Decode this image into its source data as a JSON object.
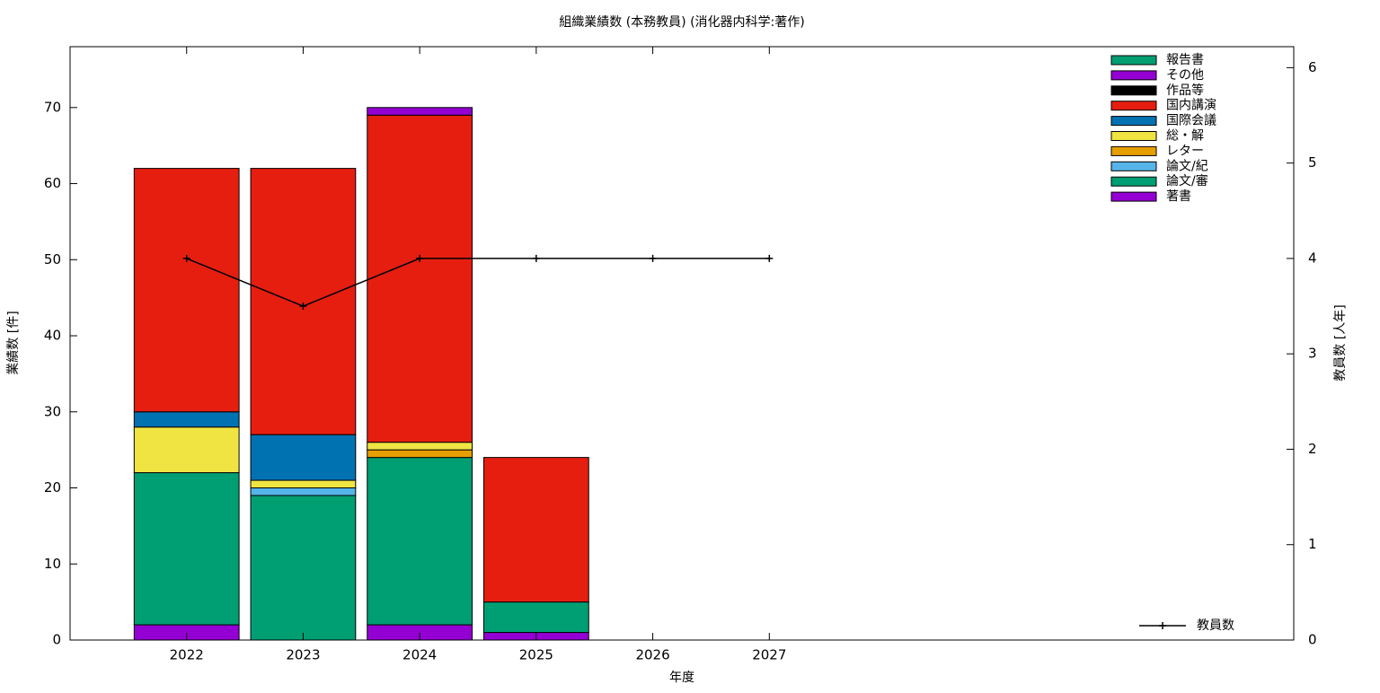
{
  "chart_data": {
    "type": "stacked-bar-line",
    "title": "組織業績数 (本務教員) (消化器内科学:著作)",
    "xlabel": "年度",
    "ylabel": "業績数 [件]",
    "y2label": "教員数 [人年]",
    "x": [
      2022,
      2023,
      2024,
      2025,
      2026,
      2027
    ],
    "xlim": [
      2021,
      2031.5
    ],
    "xticks": [
      2022,
      2023,
      2024,
      2025,
      2026,
      2027
    ],
    "ylim": [
      0,
      78
    ],
    "yticks": [
      0,
      10,
      20,
      30,
      40,
      50,
      60,
      70
    ],
    "y2lim": [
      0,
      6.22
    ],
    "y2ticks": [
      0,
      1,
      2,
      3,
      4,
      5,
      6
    ],
    "legend": "top-right",
    "series": [
      {
        "name": "著書",
        "color": "#9400d3",
        "values": [
          2,
          0,
          2,
          1,
          0,
          0
        ]
      },
      {
        "name": "論文/審",
        "color": "#009e73",
        "values": [
          20,
          19,
          22,
          4,
          0,
          0
        ]
      },
      {
        "name": "論文/紀",
        "color": "#56b4e9",
        "values": [
          0,
          1,
          0,
          0,
          0,
          0
        ]
      },
      {
        "name": "レター",
        "color": "#e69f00",
        "values": [
          0,
          0,
          1,
          0,
          0,
          0
        ]
      },
      {
        "name": "総・解",
        "color": "#f0e442",
        "values": [
          6,
          1,
          1,
          0,
          0,
          0
        ]
      },
      {
        "name": "国際会議",
        "color": "#0072b2",
        "values": [
          2,
          6,
          0,
          0,
          0,
          0
        ]
      },
      {
        "name": "国内講演",
        "color": "#e51e10",
        "values": [
          32,
          35,
          43,
          19,
          0,
          0
        ]
      },
      {
        "name": "作品等",
        "color": "#000000",
        "values": [
          0,
          0,
          0,
          0,
          0,
          0
        ]
      },
      {
        "name": "その他",
        "color": "#9400d3",
        "values": [
          0,
          0,
          1,
          0,
          0,
          0
        ]
      },
      {
        "name": "報告書",
        "color": "#009e73",
        "values": [
          0,
          0,
          0,
          0,
          0,
          0
        ]
      },
      {
        "name": "教員数",
        "color": "#000000",
        "axis": "y2",
        "type": "line",
        "values": [
          4,
          3.5,
          4,
          4,
          4,
          4
        ]
      }
    ]
  }
}
